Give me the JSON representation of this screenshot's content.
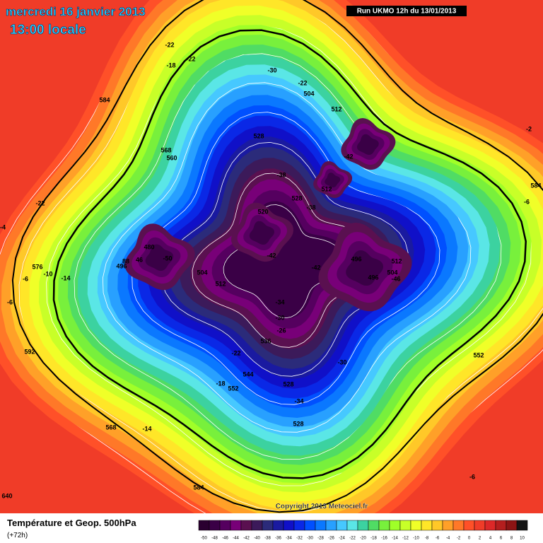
{
  "header": {
    "date": "mercredi 16 janvier 2013",
    "time": "13:00 locale",
    "run": "Run UKMO 12h du 13/01/2013"
  },
  "map": {
    "labels": [
      "-22",
      "-22",
      "-18",
      "584",
      "-30",
      "-22",
      "504",
      "512",
      "528",
      "-42",
      "568",
      "560",
      "-38",
      "512",
      "528",
      "-38",
      "-22",
      "520",
      "480",
      "-50",
      "88",
      "46",
      "496",
      "-42",
      "-42",
      "496",
      "512",
      "504",
      "496",
      "-46",
      "504",
      "512",
      "576",
      "-10",
      "-14",
      "-6",
      "-6",
      "-34",
      "-30",
      "-26",
      "536",
      "-22",
      "592",
      "544",
      "-18",
      "552",
      "528",
      "-30",
      "552",
      "-34",
      "528",
      "568",
      "-14",
      "-6",
      "584",
      "-2",
      "584",
      "-6",
      "640",
      "-4"
    ]
  },
  "footer": {
    "title": "Température et Geop. 500hPa",
    "lead": "(+72h)",
    "copyright": "Copyright 2013 Meteociel.fr"
  },
  "legend": {
    "ticks": [
      -50,
      -48,
      -46,
      -44,
      -42,
      -40,
      -38,
      -36,
      -34,
      -32,
      -30,
      -28,
      -26,
      -24,
      -22,
      -20,
      -18,
      -16,
      -14,
      -12,
      -10,
      -8,
      -6,
      -4,
      -2,
      0,
      2,
      4,
      6,
      8,
      10
    ],
    "colors": [
      "#2a0030",
      "#3a0046",
      "#55005f",
      "#780078",
      "#5a1050",
      "#3c1a5a",
      "#2b2b7a",
      "#1a1aa0",
      "#1010c8",
      "#0a28e6",
      "#0050ff",
      "#0a78ff",
      "#28a0ff",
      "#46c8ff",
      "#5ae6e6",
      "#3cd2a0",
      "#50dc64",
      "#78f03c",
      "#a0ff28",
      "#c8ff28",
      "#f0ff28",
      "#ffe628",
      "#ffc828",
      "#ffa028",
      "#ff7828",
      "#ff5028",
      "#f03c28",
      "#dc2828",
      "#b41e1e",
      "#8c1414",
      "#141414"
    ]
  }
}
